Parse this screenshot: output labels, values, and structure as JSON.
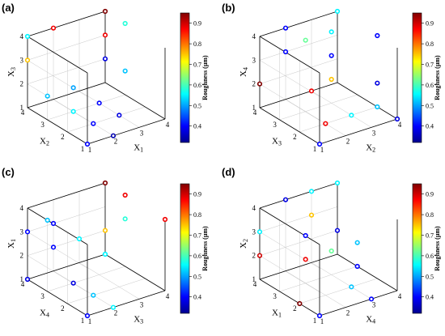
{
  "colorbar": {
    "label": "Roughness (μm)",
    "ticks": [
      "0.9",
      "0.8",
      "0.7",
      "0.6",
      "0.5",
      "0.4"
    ]
  },
  "chart_data": [
    {
      "panel": "(a)",
      "type": "scatter",
      "xlabel": "X1",
      "ylabel": "X2",
      "zlabel": "X3",
      "xlim": [
        1,
        4
      ],
      "ylim": [
        1,
        4
      ],
      "zlim": [
        1,
        4
      ],
      "color_variable": "Roughness (μm)",
      "color_range": [
        0.32,
        0.95
      ],
      "points": [
        {
          "x": 1,
          "y": 1,
          "z": 1,
          "roughness": 0.4
        },
        {
          "x": 1,
          "y": 4,
          "z": 4,
          "roughness": 0.55
        },
        {
          "x": 2,
          "y": 4,
          "z": 4,
          "roughness": 0.88
        },
        {
          "x": 1,
          "y": 4,
          "z": 3,
          "roughness": 0.75
        },
        {
          "x": 1,
          "y": 3,
          "z": 2,
          "roughness": 0.52
        },
        {
          "x": 2,
          "y": 3,
          "z": 2,
          "roughness": 0.5
        },
        {
          "x": 4,
          "y": 3,
          "z": 4,
          "roughness": 0.58
        },
        {
          "x": 4,
          "y": 4,
          "z": 4,
          "roughness": 0.95
        },
        {
          "x": 4,
          "y": 4,
          "z": 3,
          "roughness": 0.88
        },
        {
          "x": 4,
          "y": 3,
          "z": 2,
          "roughness": 0.52
        },
        {
          "x": 4,
          "y": 4,
          "z": 2,
          "roughness": 0.38
        },
        {
          "x": 3,
          "y": 3,
          "z": 1,
          "roughness": 0.4
        },
        {
          "x": 2,
          "y": 3,
          "z": 1,
          "roughness": 0.55
        },
        {
          "x": 2,
          "y": 2,
          "z": 1,
          "roughness": 0.4
        },
        {
          "x": 3,
          "y": 2,
          "z": 1,
          "roughness": 0.38
        },
        {
          "x": 2,
          "y": 1,
          "z": 1,
          "roughness": 0.35
        }
      ]
    },
    {
      "panel": "(b)",
      "type": "scatter",
      "xlabel": "X2",
      "ylabel": "X3",
      "zlabel": "X4",
      "xlim": [
        1,
        4
      ],
      "ylim": [
        1,
        4
      ],
      "zlim": [
        1,
        4
      ],
      "color_variable": "Roughness (μm)",
      "color_range": [
        0.32,
        0.95
      ],
      "points": [
        {
          "x": 1,
          "y": 1,
          "z": 1,
          "roughness": 0.4
        },
        {
          "x": 1,
          "y": 4,
          "z": 2,
          "roughness": 0.95
        },
        {
          "x": 2,
          "y": 4,
          "z": 3,
          "roughness": 0.4
        },
        {
          "x": 2,
          "y": 4,
          "z": 4,
          "roughness": 0.4
        },
        {
          "x": 2,
          "y": 3,
          "z": 4,
          "roughness": 0.62
        },
        {
          "x": 3,
          "y": 4,
          "z": 1,
          "roughness": 0.88
        },
        {
          "x": 2,
          "y": 2,
          "z": 1,
          "roughness": 0.88
        },
        {
          "x": 4,
          "y": 4,
          "z": 4,
          "roughness": 0.55
        },
        {
          "x": 3,
          "y": 3,
          "z": 4,
          "roughness": 0.55
        },
        {
          "x": 3,
          "y": 3,
          "z": 3,
          "roughness": 0.4
        },
        {
          "x": 3,
          "y": 3,
          "z": 2,
          "roughness": 0.75
        },
        {
          "x": 4,
          "y": 2,
          "z": 4,
          "roughness": 0.4
        },
        {
          "x": 3,
          "y": 2,
          "z": 1,
          "roughness": 0.55
        },
        {
          "x": 4,
          "y": 2,
          "z": 2,
          "roughness": 0.38
        },
        {
          "x": 4,
          "y": 2,
          "z": 1,
          "roughness": 0.52
        },
        {
          "x": 4,
          "y": 1,
          "z": 1,
          "roughness": 0.38
        }
      ]
    },
    {
      "panel": "(c)",
      "type": "scatter",
      "xlabel": "X3",
      "ylabel": "X4",
      "zlabel": "X1",
      "xlim": [
        1,
        4
      ],
      "ylim": [
        1,
        4
      ],
      "zlim": [
        1,
        4
      ],
      "color_variable": "Roughness (μm)",
      "color_range": [
        0.32,
        0.95
      ],
      "points": [
        {
          "x": 1,
          "y": 1,
          "z": 1,
          "roughness": 0.4
        },
        {
          "x": 1,
          "y": 3,
          "z": 4,
          "roughness": 0.52
        },
        {
          "x": 1,
          "y": 4,
          "z": 3,
          "roughness": 0.4
        },
        {
          "x": 2,
          "y": 4,
          "z": 3,
          "roughness": 0.4
        },
        {
          "x": 1,
          "y": 4,
          "z": 1,
          "roughness": 0.38
        },
        {
          "x": 2,
          "y": 4,
          "z": 2,
          "roughness": 0.4
        },
        {
          "x": 2,
          "y": 3,
          "z": 1,
          "roughness": 0.38
        },
        {
          "x": 4,
          "y": 4,
          "z": 4,
          "roughness": 0.95
        },
        {
          "x": 4,
          "y": 3,
          "z": 3,
          "roughness": 0.58
        },
        {
          "x": 4,
          "y": 3,
          "z": 4,
          "roughness": 0.88
        },
        {
          "x": 4,
          "y": 1,
          "z": 4,
          "roughness": 0.88
        },
        {
          "x": 3,
          "y": 4,
          "z": 2,
          "roughness": 0.55
        },
        {
          "x": 4,
          "y": 4,
          "z": 1,
          "roughness": 0.55
        },
        {
          "x": 4,
          "y": 4,
          "z": 2,
          "roughness": 0.75
        },
        {
          "x": 2,
          "y": 2,
          "z": 1,
          "roughness": 0.52
        },
        {
          "x": 2,
          "y": 1,
          "z": 1,
          "roughness": 0.55
        }
      ]
    },
    {
      "panel": "(d)",
      "type": "scatter",
      "xlabel": "X4",
      "ylabel": "X1",
      "zlabel": "X2",
      "xlim": [
        1,
        4
      ],
      "ylim": [
        1,
        4
      ],
      "zlim": [
        1,
        4
      ],
      "color_variable": "Roughness (μm)",
      "color_range": [
        0.32,
        0.95
      ],
      "points": [
        {
          "x": 1,
          "y": 1,
          "z": 1,
          "roughness": 0.4
        },
        {
          "x": 1,
          "y": 4,
          "z": 2,
          "roughness": 0.9
        },
        {
          "x": 1,
          "y": 4,
          "z": 3,
          "roughness": 0.55
        },
        {
          "x": 2,
          "y": 4,
          "z": 4,
          "roughness": 0.38
        },
        {
          "x": 2,
          "y": 3,
          "z": 3,
          "roughness": 0.4
        },
        {
          "x": 2,
          "y": 3,
          "z": 2,
          "roughness": 0.88
        },
        {
          "x": 1,
          "y": 2,
          "z": 1,
          "roughness": 0.95
        },
        {
          "x": 3,
          "y": 4,
          "z": 3,
          "roughness": 0.75
        },
        {
          "x": 3,
          "y": 3,
          "z": 2,
          "roughness": 0.62
        },
        {
          "x": 3,
          "y": 4,
          "z": 4,
          "roughness": 0.55
        },
        {
          "x": 4,
          "y": 4,
          "z": 4,
          "roughness": 0.55
        },
        {
          "x": 4,
          "y": 3,
          "z": 2,
          "roughness": 0.52
        },
        {
          "x": 4,
          "y": 4,
          "z": 2,
          "roughness": 0.38
        },
        {
          "x": 4,
          "y": 3,
          "z": 1,
          "roughness": 0.4
        },
        {
          "x": 3,
          "y": 2,
          "z": 1,
          "roughness": 0.52
        },
        {
          "x": 3,
          "y": 1,
          "z": 1,
          "roughness": 0.4
        }
      ]
    }
  ]
}
